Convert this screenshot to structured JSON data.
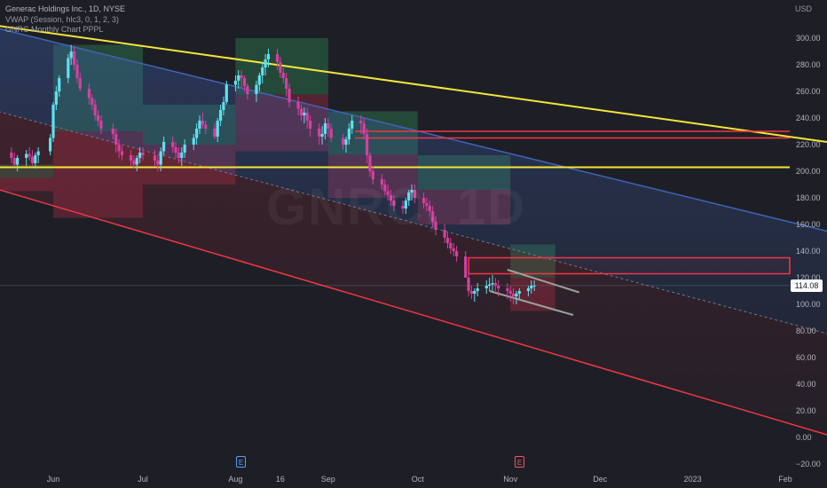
{
  "header": {
    "symbol_line": "Generac Holdings Inc., 1D, NYSE",
    "indicator_1": "VWAP (Session, hlc3, 0, 1, 2, 3)",
    "indicator_2": "GNRC Monthly Chart PPPL"
  },
  "watermark": "GNRC, 1D",
  "price_axis": {
    "unit": "USD",
    "ticks": [
      "300.00",
      "280.00",
      "260.00",
      "240.00",
      "220.00",
      "200.00",
      "180.00",
      "160.00",
      "140.00",
      "120.00",
      "100.00",
      "80.00",
      "60.00",
      "40.00",
      "20.00",
      "0.00",
      "−20.00"
    ],
    "last_price": "114.08"
  },
  "time_axis": {
    "ticks": [
      "Jun",
      "Jul",
      "Aug",
      "16",
      "Sep",
      "Oct",
      "Nov",
      "Dec",
      "2023",
      "Feb"
    ]
  },
  "events": [
    {
      "label": "E",
      "near": "Aug"
    },
    {
      "label": "E",
      "near": "Nov"
    }
  ],
  "colors": {
    "background": "#1e1f26",
    "up_candle": "#5fe0ee",
    "down_candle": "#d63fa1",
    "yellow_line": "#f5e63a",
    "red_line": "#f23645",
    "blue_channel": "#3f64b6",
    "green_zone": "#2e7d4f",
    "red_zone": "#8b2a3d"
  },
  "chart_data": {
    "type": "candlestick",
    "title": "Generac Holdings Inc., 1D, NYSE",
    "ylabel": "USD",
    "ylim": [
      -23,
      310
    ],
    "x": [
      "2022-05-18",
      "2022-05-19",
      "2022-05-20",
      "2022-05-23",
      "2022-05-24",
      "2022-05-25",
      "2022-05-26",
      "2022-05-27",
      "2022-05-31",
      "2022-06-01",
      "2022-06-02",
      "2022-06-03",
      "2022-06-06",
      "2022-06-07",
      "2022-06-08",
      "2022-06-09",
      "2022-06-10",
      "2022-06-13",
      "2022-06-14",
      "2022-06-15",
      "2022-06-16",
      "2022-06-17",
      "2022-06-21",
      "2022-06-22",
      "2022-06-23",
      "2022-06-24",
      "2022-06-27",
      "2022-06-28",
      "2022-06-29",
      "2022-06-30",
      "2022-07-01",
      "2022-07-05",
      "2022-07-06",
      "2022-07-07",
      "2022-07-08",
      "2022-07-11",
      "2022-07-12",
      "2022-07-13",
      "2022-07-14",
      "2022-07-15",
      "2022-07-18",
      "2022-07-19",
      "2022-07-20",
      "2022-07-21",
      "2022-07-22",
      "2022-07-25",
      "2022-07-26",
      "2022-07-27",
      "2022-07-28",
      "2022-07-29",
      "2022-08-01",
      "2022-08-02",
      "2022-08-03",
      "2022-08-04",
      "2022-08-05",
      "2022-08-08",
      "2022-08-09",
      "2022-08-10",
      "2022-08-11",
      "2022-08-12",
      "2022-08-15",
      "2022-08-16",
      "2022-08-17",
      "2022-08-18",
      "2022-08-19",
      "2022-08-22",
      "2022-08-23",
      "2022-08-24",
      "2022-08-25",
      "2022-08-26",
      "2022-08-29",
      "2022-08-30",
      "2022-08-31",
      "2022-09-01",
      "2022-09-02",
      "2022-09-06",
      "2022-09-07",
      "2022-09-08",
      "2022-09-09",
      "2022-09-12",
      "2022-09-13",
      "2022-09-14",
      "2022-09-15",
      "2022-09-16",
      "2022-09-19",
      "2022-09-20",
      "2022-09-21",
      "2022-09-22",
      "2022-09-23",
      "2022-09-26",
      "2022-09-27",
      "2022-09-28",
      "2022-09-29",
      "2022-09-30",
      "2022-10-03",
      "2022-10-04",
      "2022-10-05",
      "2022-10-06",
      "2022-10-07",
      "2022-10-10",
      "2022-10-11",
      "2022-10-12",
      "2022-10-13",
      "2022-10-14",
      "2022-10-17",
      "2022-10-18",
      "2022-10-19",
      "2022-10-20",
      "2022-10-21",
      "2022-10-24",
      "2022-10-25",
      "2022-10-26",
      "2022-10-27",
      "2022-10-28",
      "2022-10-31",
      "2022-11-01",
      "2022-11-02",
      "2022-11-03",
      "2022-11-04",
      "2022-11-07",
      "2022-11-08",
      "2022-11-09",
      "2022-11-10",
      "2022-11-11",
      "2022-11-14",
      "2022-11-15"
    ],
    "series": [
      {
        "open": [
          214,
          210,
          205,
          210,
          213,
          211,
          206,
          212,
          215,
          225,
          250,
          260,
          270,
          285,
          290,
          280,
          270,
          262,
          255,
          250,
          242,
          238,
          232,
          228,
          220,
          215,
          212,
          208,
          205,
          210,
          214,
          212,
          208,
          205,
          215,
          222,
          218,
          214,
          210,
          214,
          220,
          225,
          232,
          238,
          235,
          232,
          226,
          238,
          246,
          252,
          265,
          268,
          272,
          270,
          264,
          258,
          265,
          272,
          278,
          284,
          288,
          282,
          274,
          270,
          262,
          252,
          247,
          242,
          244,
          238,
          232,
          226,
          228,
          236,
          232,
          225,
          220,
          224,
          232,
          238,
          236,
          228,
          212,
          200,
          194,
          190,
          185,
          182,
          178,
          174,
          172,
          178,
          184,
          186,
          180,
          176,
          174,
          170,
          162,
          156,
          150,
          146,
          142,
          140,
          136,
          120,
          110,
          108,
          110,
          112,
          114,
          115,
          116,
          114,
          112,
          110,
          108,
          106,
          108,
          110,
          112,
          114
        ],
        "high": [
          218,
          214,
          212,
          216,
          218,
          216,
          214,
          218,
          228,
          252,
          264,
          272,
          288,
          295,
          294,
          284,
          274,
          266,
          258,
          254,
          246,
          242,
          236,
          232,
          224,
          219,
          216,
          212,
          212,
          218,
          218,
          216,
          212,
          218,
          226,
          226,
          222,
          218,
          218,
          224,
          228,
          236,
          242,
          244,
          238,
          236,
          240,
          250,
          256,
          268,
          272,
          276,
          276,
          272,
          266,
          268,
          274,
          282,
          288,
          292,
          292,
          286,
          278,
          274,
          266,
          256,
          250,
          248,
          248,
          242,
          236,
          234,
          240,
          240,
          236,
          228,
          226,
          236,
          242,
          242,
          240,
          232,
          214,
          204,
          198,
          194,
          190,
          186,
          182,
          178,
          180,
          186,
          190,
          190,
          184,
          180,
          178,
          174,
          166,
          160,
          154,
          150,
          146,
          144,
          140,
          124,
          114,
          112,
          116,
          118,
          120,
          122,
          120,
          118,
          116,
          114,
          112,
          110,
          112,
          114,
          118,
          118
        ],
        "low": [
          206,
          204,
          200,
          204,
          208,
          204,
          202,
          206,
          212,
          222,
          246,
          256,
          266,
          280,
          276,
          266,
          260,
          250,
          246,
          238,
          234,
          228,
          224,
          214,
          210,
          208,
          204,
          202,
          200,
          206,
          208,
          204,
          200,
          200,
          212,
          214,
          210,
          206,
          204,
          210,
          216,
          220,
          228,
          232,
          228,
          224,
          222,
          234,
          242,
          250,
          260,
          262,
          262,
          260,
          254,
          252,
          260,
          266,
          272,
          278,
          276,
          270,
          266,
          256,
          248,
          242,
          238,
          236,
          232,
          226,
          220,
          220,
          224,
          226,
          222,
          216,
          214,
          220,
          228,
          228,
          224,
          206,
          196,
          190,
          186,
          182,
          178,
          174,
          170,
          168,
          168,
          174,
          178,
          176,
          172,
          170,
          166,
          158,
          152,
          146,
          142,
          138,
          136,
          132,
          120,
          106,
          104,
          102,
          106,
          108,
          110,
          110,
          110,
          106,
          104,
          102,
          100,
          100,
          104,
          106,
          108,
          110
        ],
        "close": [
          210,
          205,
          210,
          213,
          211,
          206,
          212,
          215,
          225,
          250,
          260,
          270,
          285,
          290,
          280,
          270,
          262,
          255,
          250,
          242,
          238,
          232,
          228,
          220,
          215,
          212,
          208,
          205,
          210,
          214,
          212,
          208,
          205,
          215,
          222,
          218,
          214,
          210,
          214,
          220,
          225,
          232,
          238,
          235,
          232,
          226,
          238,
          246,
          252,
          265,
          268,
          272,
          270,
          264,
          258,
          265,
          272,
          278,
          284,
          288,
          282,
          274,
          270,
          262,
          252,
          247,
          242,
          244,
          238,
          232,
          226,
          228,
          236,
          232,
          225,
          220,
          224,
          232,
          238,
          236,
          228,
          212,
          200,
          194,
          190,
          185,
          182,
          178,
          174,
          172,
          178,
          184,
          186,
          180,
          176,
          174,
          170,
          162,
          156,
          150,
          146,
          142,
          140,
          136,
          120,
          110,
          108,
          110,
          112,
          114,
          115,
          116,
          114,
          112,
          110,
          108,
          106,
          108,
          110,
          112,
          114,
          114.08
        ]
      }
    ],
    "overlays": {
      "horizontal_lines": [
        {
          "name": "yellow level",
          "value": 203,
          "color": "#f5e63a"
        },
        {
          "name": "red level upper",
          "value": 230,
          "color": "#f23645"
        },
        {
          "name": "red level lower",
          "value": 225,
          "color": "#f23645"
        }
      ],
      "trend_lines": [
        {
          "name": "yellow downtrend",
          "from": [
            "2022-05-05",
            312
          ],
          "to": [
            "2023-02-15",
            222
          ],
          "color": "#f5e63a"
        },
        {
          "name": "blue channel top",
          "from": [
            "2022-05-05",
            312
          ],
          "to": [
            "2023-02-15",
            155
          ],
          "color": "#3f64b6"
        },
        {
          "name": "red channel bottom",
          "from": [
            "2022-05-05",
            192
          ],
          "to": [
            "2023-02-15",
            2
          ],
          "color": "#f23645"
        }
      ],
      "rectangle_zone": {
        "from": "2022-10-24",
        "to": "2023-02-15",
        "top": 135,
        "bottom": 123,
        "color": "#f23645"
      }
    }
  }
}
